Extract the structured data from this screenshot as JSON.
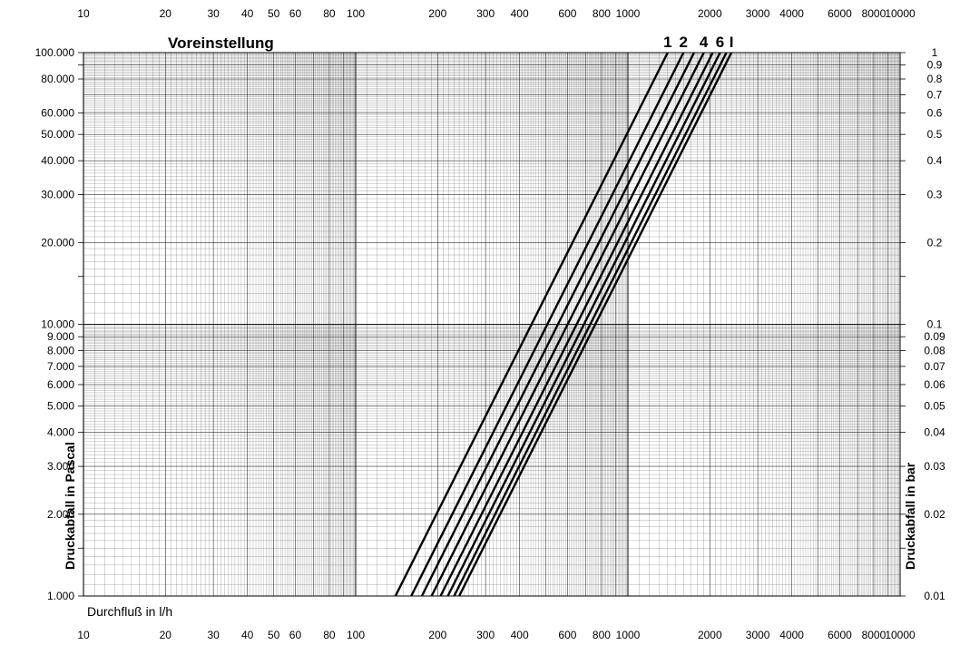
{
  "chart_data": {
    "type": "line",
    "title": "Voreinstellung",
    "xlabel": "Durchfluß  in  l/h",
    "ylabel_left": "Druckabfall  in  Pascal",
    "ylabel_right": "Druckabfall  in  bar",
    "x_scale": "log",
    "y_scale": "log",
    "xlim": [
      10,
      10000
    ],
    "ylim": [
      1000,
      100000
    ],
    "grid": true,
    "x_tick_labels": [
      "10",
      "20",
      "30",
      "40",
      "50",
      "60",
      "80",
      "100",
      "200",
      "300",
      "400",
      "600",
      "800",
      "1000",
      "2000",
      "3000",
      "4000",
      "6000",
      "8000",
      "10000"
    ],
    "x_tick_values": [
      10,
      20,
      30,
      40,
      50,
      60,
      80,
      100,
      200,
      300,
      400,
      600,
      800,
      1000,
      2000,
      3000,
      4000,
      6000,
      8000,
      10000
    ],
    "y_left_tick_labels": [
      "1.000",
      "2.000",
      "3.000",
      "4.000",
      "5.000",
      "6.000",
      "7.000",
      "8.000",
      "9.000",
      "10.000",
      "20.000",
      "30.000",
      "40.000",
      "50.000",
      "60.000",
      "80.000",
      "100.000"
    ],
    "y_left_tick_values": [
      1000,
      2000,
      3000,
      4000,
      5000,
      6000,
      7000,
      8000,
      9000,
      10000,
      20000,
      30000,
      40000,
      50000,
      60000,
      80000,
      100000
    ],
    "y_right_tick_labels": [
      "0.01",
      "0.02",
      "0.03",
      "0.04",
      "0.05",
      "0.06",
      "0.07",
      "0.08",
      "0.09",
      "0.1",
      "0.2",
      "0.3",
      "0.4",
      "0.5",
      "0.6",
      "0.7",
      "0.8",
      "0.9",
      "1"
    ],
    "y_right_tick_values": [
      1000,
      2000,
      3000,
      4000,
      5000,
      6000,
      7000,
      8000,
      9000,
      10000,
      20000,
      30000,
      40000,
      50000,
      60000,
      70000,
      80000,
      90000,
      100000
    ],
    "series": [
      {
        "name": "1",
        "x": [
          140,
          1400
        ],
        "y": [
          1000,
          100000
        ]
      },
      {
        "name": "2",
        "x": [
          160,
          1600
        ],
        "y": [
          1000,
          100000
        ]
      },
      {
        "x": [
          175,
          1750
        ],
        "y": [
          1000,
          100000
        ]
      },
      {
        "name": "4",
        "x": [
          190,
          1900
        ],
        "y": [
          1000,
          100000
        ]
      },
      {
        "x": [
          205,
          2050
        ],
        "y": [
          1000,
          100000
        ]
      },
      {
        "name": "6",
        "x": [
          218,
          2180
        ],
        "y": [
          1000,
          100000
        ]
      },
      {
        "x": [
          230,
          2300
        ],
        "y": [
          1000,
          100000
        ]
      },
      {
        "name": "I",
        "x": [
          240,
          2400
        ],
        "y": [
          1000,
          100000
        ]
      }
    ]
  }
}
